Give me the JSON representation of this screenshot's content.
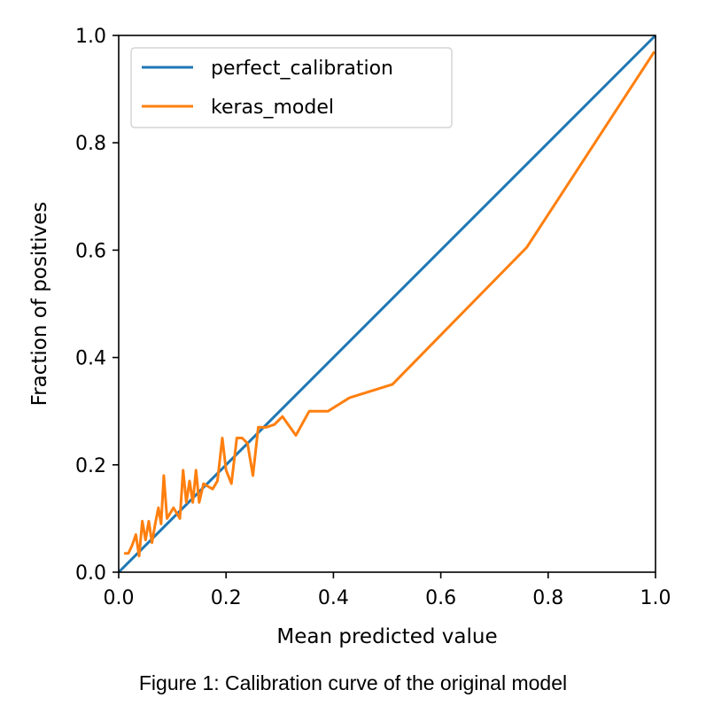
{
  "chart_data": {
    "type": "line",
    "title": "",
    "xlabel": "Mean predicted value",
    "ylabel": "Fraction of positives",
    "xlim": [
      0.0,
      1.0
    ],
    "ylim": [
      0.0,
      1.0
    ],
    "grid": false,
    "legend_position": "top-left",
    "xticks": [
      "0.0",
      "0.2",
      "0.4",
      "0.6",
      "0.8",
      "1.0"
    ],
    "yticks": [
      "0.0",
      "0.2",
      "0.4",
      "0.6",
      "0.8",
      "1.0"
    ],
    "series": [
      {
        "name": "perfect_calibration",
        "color": "#1f77b4",
        "x": [
          0.0,
          1.0
        ],
        "y": [
          0.0,
          1.0
        ]
      },
      {
        "name": "keras_model",
        "color": "#ff7f0e",
        "x": [
          0.01,
          0.018,
          0.025,
          0.032,
          0.038,
          0.044,
          0.05,
          0.056,
          0.062,
          0.068,
          0.074,
          0.079,
          0.084,
          0.09,
          0.096,
          0.102,
          0.108,
          0.114,
          0.12,
          0.126,
          0.132,
          0.138,
          0.144,
          0.15,
          0.158,
          0.166,
          0.175,
          0.184,
          0.193,
          0.2,
          0.21,
          0.22,
          0.23,
          0.24,
          0.25,
          0.26,
          0.275,
          0.29,
          0.305,
          0.33,
          0.355,
          0.39,
          0.43,
          0.51,
          0.76,
          0.998
        ],
        "y": [
          0.035,
          0.035,
          0.05,
          0.07,
          0.03,
          0.095,
          0.06,
          0.095,
          0.055,
          0.09,
          0.12,
          0.09,
          0.18,
          0.1,
          0.11,
          0.12,
          0.11,
          0.1,
          0.19,
          0.13,
          0.17,
          0.13,
          0.19,
          0.13,
          0.165,
          0.16,
          0.155,
          0.17,
          0.25,
          0.19,
          0.165,
          0.25,
          0.25,
          0.24,
          0.18,
          0.27,
          0.27,
          0.275,
          0.29,
          0.255,
          0.3,
          0.3,
          0.325,
          0.35,
          0.605,
          0.97
        ]
      }
    ]
  },
  "figure": {
    "caption": "Figure 1: Calibration curve of the original model"
  }
}
